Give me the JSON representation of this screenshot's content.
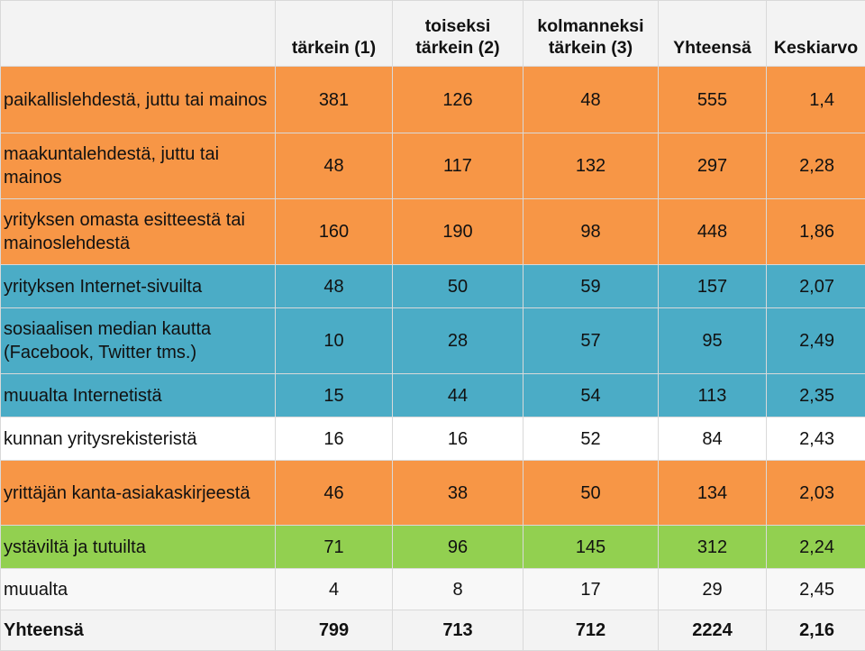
{
  "table": {
    "headers": [
      "",
      "tärkein (1)",
      "toiseksi\ntärkein (2)",
      "kolmanneksi\ntärkein (3)",
      "Yhteensä",
      "Keskiarvo"
    ],
    "header_lines": [
      [
        ""
      ],
      [
        "tärkein (1)"
      ],
      [
        "toiseksi",
        "tärkein (2)"
      ],
      [
        "kolmanneksi",
        "tärkein (3)"
      ],
      [
        "Yhteensä"
      ],
      [
        "Keskiarvo"
      ]
    ],
    "rows": [
      {
        "label": "paikallislehdestä, juttu tai mainos",
        "values": [
          "381",
          "126",
          "48",
          "555",
          "1,4"
        ],
        "color": "#f79646"
      },
      {
        "label": "maakuntalehdestä, juttu tai mainos",
        "values": [
          "48",
          "117",
          "132",
          "297",
          "2,28"
        ],
        "color": "#f79646"
      },
      {
        "label": "yrityksen omasta esitteestä tai mainoslehdestä",
        "values": [
          "160",
          "190",
          "98",
          "448",
          "1,86"
        ],
        "color": "#f79646"
      },
      {
        "label": "yrityksen Internet-sivuilta",
        "values": [
          "48",
          "50",
          "59",
          "157",
          "2,07"
        ],
        "color": "#4bacc6"
      },
      {
        "label": "sosiaalisen median kautta (Facebook, Twitter tms.)",
        "values": [
          "10",
          "28",
          "57",
          "95",
          "2,49"
        ],
        "color": "#4bacc6"
      },
      {
        "label": "muualta Internetistä",
        "values": [
          "15",
          "44",
          "54",
          "113",
          "2,35"
        ],
        "color": "#4bacc6"
      },
      {
        "label": "kunnan yritysrekisteristä",
        "values": [
          "16",
          "16",
          "52",
          "84",
          "2,43"
        ],
        "color": "#ffffff"
      },
      {
        "label": "yrittäjän kanta-asiakaskirjeestä",
        "values": [
          "46",
          "38",
          "50",
          "134",
          "2,03"
        ],
        "color": "#f79646"
      },
      {
        "label": "ystäviltä ja tutuilta",
        "values": [
          "71",
          "96",
          "145",
          "312",
          "2,24"
        ],
        "color": "#92d050"
      },
      {
        "label": "muualta",
        "values": [
          "4",
          "8",
          "17",
          "29",
          "2,45"
        ],
        "color": "#f8f8f8"
      },
      {
        "label": "Yhteensä",
        "values": [
          "799",
          "713",
          "712",
          "2224",
          "2,16"
        ],
        "color": "#f3f3f3"
      }
    ]
  }
}
